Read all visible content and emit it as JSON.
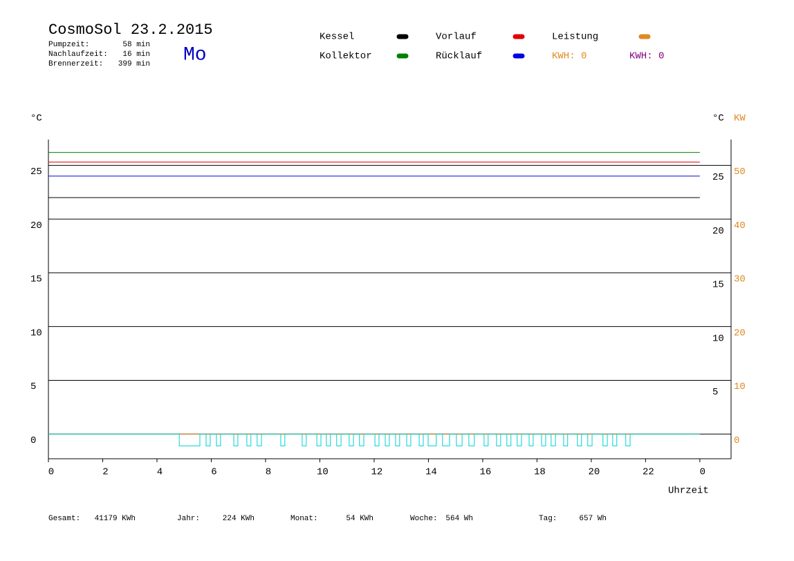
{
  "chart_data": {
    "type": "line",
    "title": "CosmoSol 23.2.2015",
    "weekday": "Mo",
    "stats": [
      {
        "label": "Pumpzeit:",
        "value": "58 min"
      },
      {
        "label": "Nachlaufzeit:",
        "value": "16 min"
      },
      {
        "label": "Brennerzeit:",
        "value": "399 min"
      }
    ],
    "kwh_labels": [
      {
        "text": "KWH: 0",
        "color": "#e08a1e"
      },
      {
        "text": "KWH: 0",
        "color": "#800080"
      }
    ],
    "ylabel": "°C",
    "y_right_label": "°C",
    "y2label": "KW",
    "xlabel": "Uhrzeit",
    "xlim": [
      0,
      25.15
    ],
    "xticks": [
      0,
      2,
      4,
      6,
      8,
      10,
      12,
      14,
      16,
      18,
      20,
      22,
      {
        "value": 24,
        "label": "0"
      }
    ],
    "ylim": [
      -2.3,
      27.4
    ],
    "yticks": [
      0,
      5,
      10,
      15,
      20,
      25
    ],
    "y_right_ticks": [
      5,
      10,
      15,
      20,
      25
    ],
    "y2lim": [
      -4.6,
      54.8
    ],
    "y2ticks": [
      0,
      10,
      20,
      30,
      40,
      50
    ],
    "grid": true,
    "series": [
      {
        "name": "Kessel",
        "color": "#000000",
        "x": [
          0,
          24
        ],
        "values": [
          22.0,
          22.0
        ]
      },
      {
        "name": "Vorlauf",
        "color": "#e00000",
        "x": [
          0,
          24
        ],
        "values": [
          25.3,
          25.3
        ]
      },
      {
        "name": "Leistung",
        "color": "#e08a1e",
        "axis": "y2",
        "x": [
          0,
          24
        ],
        "values": [
          0,
          0
        ]
      },
      {
        "name": "Kollektor",
        "color": "#008000",
        "x": [
          0,
          24
        ],
        "values": [
          26.2,
          26.2
        ]
      },
      {
        "name": "Rücklauf",
        "color": "#0000e0",
        "x": [
          0,
          24
        ],
        "values": [
          24.0,
          24.0
        ]
      },
      {
        "color": "#00d0d0",
        "x": [
          0,
          4.82,
          4.82,
          5.58,
          5.58,
          5.81,
          5.81,
          5.96,
          5.96,
          6.19,
          6.19,
          6.34,
          6.34,
          6.83,
          6.83,
          6.98,
          6.98,
          7.31,
          7.31,
          7.46,
          7.46,
          7.69,
          7.69,
          7.85,
          7.85,
          8.56,
          8.56,
          8.71,
          8.71,
          9.35,
          9.35,
          9.5,
          9.5,
          9.89,
          9.89,
          10.04,
          10.04,
          10.24,
          10.24,
          10.39,
          10.39,
          10.62,
          10.62,
          10.78,
          10.78,
          11.08,
          11.08,
          11.24,
          11.24,
          11.46,
          11.46,
          11.62,
          11.62,
          12.03,
          12.03,
          12.18,
          12.18,
          12.41,
          12.41,
          12.56,
          12.56,
          12.79,
          12.79,
          12.94,
          12.94,
          13.2,
          13.2,
          13.35,
          13.35,
          13.66,
          13.66,
          13.81,
          13.81,
          13.99,
          13.99,
          14.29,
          14.29,
          14.52,
          14.52,
          14.78,
          14.78,
          15.03,
          15.03,
          15.24,
          15.24,
          15.49,
          15.49,
          15.69,
          15.69,
          16.05,
          16.05,
          16.2,
          16.2,
          16.51,
          16.51,
          16.66,
          16.66,
          16.89,
          16.89,
          17.04,
          17.04,
          17.27,
          17.27,
          17.43,
          17.43,
          17.71,
          17.71,
          17.86,
          17.86,
          18.17,
          18.17,
          18.32,
          18.32,
          18.52,
          18.52,
          18.68,
          18.68,
          18.98,
          18.98,
          19.13,
          19.13,
          19.49,
          19.49,
          19.64,
          19.64,
          19.87,
          19.87,
          20.03,
          20.03,
          20.43,
          20.43,
          20.59,
          20.59,
          20.79,
          20.79,
          20.94,
          20.94,
          21.27,
          21.27,
          21.43,
          21.43,
          24
        ],
        "values": [
          0,
          0,
          -1.1,
          -1.1,
          0,
          0,
          -1.1,
          -1.1,
          0,
          0,
          -1.1,
          -1.1,
          0,
          0,
          -1.1,
          -1.1,
          0,
          0,
          -1.1,
          -1.1,
          0,
          0,
          -1.1,
          -1.1,
          0,
          0,
          -1.1,
          -1.1,
          0,
          0,
          -1.1,
          -1.1,
          0,
          0,
          -1.1,
          -1.1,
          0,
          0,
          -1.1,
          -1.1,
          0,
          0,
          -1.1,
          -1.1,
          0,
          0,
          -1.1,
          -1.1,
          0,
          0,
          -1.1,
          -1.1,
          0,
          0,
          -1.1,
          -1.1,
          0,
          0,
          -1.1,
          -1.1,
          0,
          0,
          -1.1,
          -1.1,
          0,
          0,
          -1.1,
          -1.1,
          0,
          0,
          -1.1,
          -1.1,
          0,
          0,
          -1.1,
          -1.1,
          0,
          0,
          -1.1,
          -1.1,
          0,
          0,
          -1.1,
          -1.1,
          0,
          0,
          -1.1,
          -1.1,
          0,
          0,
          -1.1,
          -1.1,
          0,
          0,
          -1.1,
          -1.1,
          0,
          0,
          -1.1,
          -1.1,
          0,
          0,
          -1.1,
          -1.1,
          0,
          0,
          -1.1,
          -1.1,
          0,
          0,
          -1.1,
          -1.1,
          0,
          0,
          -1.1,
          -1.1,
          0,
          0,
          -1.1,
          -1.1,
          0,
          0,
          -1.1,
          -1.1,
          0,
          0,
          -1.1,
          -1.1,
          0,
          0,
          -1.1,
          -1.1,
          0,
          0,
          -1.1,
          -1.1,
          0,
          0,
          -1.1,
          -1.1,
          0,
          0
        ]
      }
    ],
    "totals": [
      {
        "label": "Gesamt:",
        "value": "41179 KWh"
      },
      {
        "label": "Jahr:",
        "value": "224 KWh"
      },
      {
        "label": "Monat:",
        "value": "54 KWh"
      },
      {
        "label": "Woche:",
        "value": "564 Wh"
      },
      {
        "label": "Tag:",
        "value": "657 Wh"
      }
    ]
  }
}
